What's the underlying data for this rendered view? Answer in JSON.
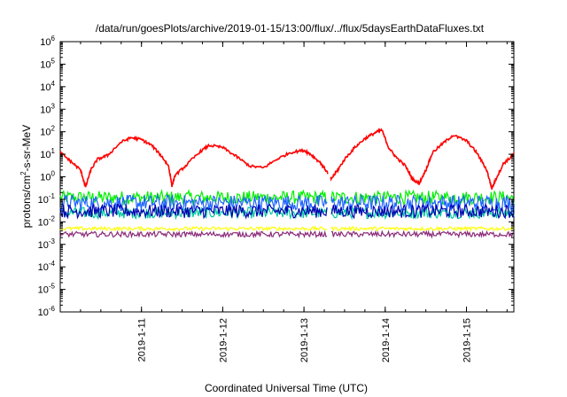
{
  "chart_data": {
    "type": "line",
    "title": "/data/run/goesPlots/archive/2019-01-15/13:00/flux/../flux/5daysEarthDataFluxes.txt",
    "xlabel": "Coordinated Universal Time (UTC)",
    "ylabel": {
      "prefix": "protons/cm",
      "sup": "2",
      "suffix": "-s-sr-MeV"
    },
    "y_scale": "log",
    "ylim": [
      "1e-6",
      "1e6"
    ],
    "y_ticks": [
      {
        "base": "10",
        "exp": "-6"
      },
      {
        "base": "10",
        "exp": "-5"
      },
      {
        "base": "10",
        "exp": "-4"
      },
      {
        "base": "10",
        "exp": "-3"
      },
      {
        "base": "10",
        "exp": "-2"
      },
      {
        "base": "10",
        "exp": "-1"
      },
      {
        "base": "10",
        "exp": "0"
      },
      {
        "base": "10",
        "exp": "1"
      },
      {
        "base": "10",
        "exp": "2"
      },
      {
        "base": "10",
        "exp": "3"
      },
      {
        "base": "10",
        "exp": "4"
      },
      {
        "base": "10",
        "exp": "5"
      },
      {
        "base": "10",
        "exp": "6"
      }
    ],
    "xlim": [
      "2019-01-10T00:00",
      "2019-01-15T14:00"
    ],
    "x_ticks": [
      "2019-1-11",
      "2019-1-12",
      "2019-1-13",
      "2019-1-14",
      "2019-1-15"
    ],
    "grid": false,
    "data_gap": {
      "start": "2019-01-13T07:00",
      "end": "2019-01-13T07:50"
    },
    "series": [
      {
        "color": "#ff0000",
        "points": [
          [
            "2019-01-10T00:00",
            12
          ],
          [
            "2019-01-10T03:00",
            5
          ],
          [
            "2019-01-10T06:00",
            2
          ],
          [
            "2019-01-10T07:30",
            0.35
          ],
          [
            "2019-01-10T09:00",
            2
          ],
          [
            "2019-01-10T11:00",
            6
          ],
          [
            "2019-01-10T14:00",
            9
          ],
          [
            "2019-01-10T18:00",
            35
          ],
          [
            "2019-01-10T21:00",
            55
          ],
          [
            "2019-01-11T00:00",
            45
          ],
          [
            "2019-01-11T03:00",
            25
          ],
          [
            "2019-01-11T06:00",
            8
          ],
          [
            "2019-01-11T08:00",
            3
          ],
          [
            "2019-01-11T09:00",
            0.4
          ],
          [
            "2019-01-11T10:00",
            1.2
          ],
          [
            "2019-01-11T13:00",
            3
          ],
          [
            "2019-01-11T17:00",
            12
          ],
          [
            "2019-01-11T20:00",
            25
          ],
          [
            "2019-01-12T00:00",
            20
          ],
          [
            "2019-01-12T04:00",
            8
          ],
          [
            "2019-01-12T08:00",
            3
          ],
          [
            "2019-01-12T12:00",
            2.5
          ],
          [
            "2019-01-12T16:00",
            6
          ],
          [
            "2019-01-12T20:00",
            12
          ],
          [
            "2019-01-13T00:00",
            15
          ],
          [
            "2019-01-13T02:00",
            10
          ],
          [
            "2019-01-13T05:00",
            4
          ],
          [
            "2019-01-13T07:00",
            1.5
          ],
          [
            "2019-01-13T08:00",
            0.8
          ],
          [
            "2019-01-13T10:00",
            2
          ],
          [
            "2019-01-13T12:00",
            6
          ],
          [
            "2019-01-13T15:00",
            20
          ],
          [
            "2019-01-13T18:00",
            50
          ],
          [
            "2019-01-13T21:00",
            90
          ],
          [
            "2019-01-13T23:00",
            120
          ],
          [
            "2019-01-14T01:00",
            20
          ],
          [
            "2019-01-14T03:00",
            8
          ],
          [
            "2019-01-14T06:00",
            3
          ],
          [
            "2019-01-14T08:00",
            0.8
          ],
          [
            "2019-01-14T10:00",
            0.5
          ],
          [
            "2019-01-14T12:00",
            2
          ],
          [
            "2019-01-14T14:00",
            12
          ],
          [
            "2019-01-14T17:00",
            30
          ],
          [
            "2019-01-14T20:00",
            70
          ],
          [
            "2019-01-15T00:00",
            40
          ],
          [
            "2019-01-15T03:00",
            12
          ],
          [
            "2019-01-15T06:00",
            2
          ],
          [
            "2019-01-15T07:30",
            0.3
          ],
          [
            "2019-01-15T09:00",
            1
          ],
          [
            "2019-01-15T11:00",
            4
          ],
          [
            "2019-01-15T13:00",
            7
          ],
          [
            "2019-01-15T14:00",
            10
          ]
        ]
      },
      {
        "color": "#00ee00",
        "level": 0.12,
        "spread": 0.3
      },
      {
        "color": "#00c8a0",
        "level": 0.025,
        "spread": 0.25
      },
      {
        "color": "#1e64ff",
        "level": 0.07,
        "spread": 0.35
      },
      {
        "color": "#0000b0",
        "level": 0.03,
        "spread": 0.3
      },
      {
        "color": "#ffff00",
        "level": 0.005,
        "spread": 0.08
      },
      {
        "color": "#8b2a7a",
        "level": 0.0028,
        "spread": 0.12
      }
    ]
  }
}
